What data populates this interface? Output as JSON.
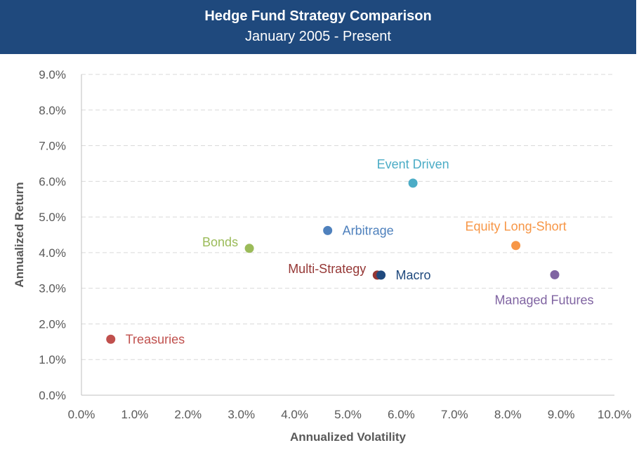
{
  "header": {
    "background": "#1f497d",
    "title": "Hedge Fund Strategy Comparison",
    "subtitle": "January 2005 - Present"
  },
  "chart_data": {
    "type": "scatter",
    "title": "Hedge Fund Strategy Comparison",
    "subtitle": "January 2005 - Present",
    "xlabel": "Annualized Volatility",
    "ylabel": "Annualized Return",
    "xlim": [
      0,
      10
    ],
    "ylim": [
      0,
      9
    ],
    "x_ticks": [
      "0.0%",
      "1.0%",
      "2.0%",
      "3.0%",
      "4.0%",
      "5.0%",
      "6.0%",
      "7.0%",
      "8.0%",
      "9.0%",
      "10.0%"
    ],
    "y_ticks": [
      "0.0%",
      "1.0%",
      "2.0%",
      "3.0%",
      "4.0%",
      "5.0%",
      "6.0%",
      "7.0%",
      "8.0%",
      "9.0%"
    ],
    "grid": "horizontal dashed",
    "legend": "none",
    "points": [
      {
        "label": "Treasuries",
        "x": 0.55,
        "y": 1.57,
        "color": "#c0504d",
        "label_pos": "right"
      },
      {
        "label": "Bonds",
        "x": 3.15,
        "y": 4.12,
        "color": "#9bbb59",
        "label_pos": "left"
      },
      {
        "label": "Arbitrage",
        "x": 4.62,
        "y": 4.62,
        "color": "#4f81bd",
        "label_pos": "right"
      },
      {
        "label": "Event Driven",
        "x": 6.22,
        "y": 5.95,
        "color": "#4bacc6",
        "label_pos": "top"
      },
      {
        "label": "Equity Long-Short",
        "x": 8.15,
        "y": 4.2,
        "color": "#f79646",
        "label_pos": "top"
      },
      {
        "label": "Multi-Strategy",
        "x": 5.55,
        "y": 3.37,
        "color": "#953735",
        "label_pos": "left"
      },
      {
        "label": "Macro",
        "x": 5.62,
        "y": 3.37,
        "color": "#1f497d",
        "label_pos": "right"
      },
      {
        "label": "Managed Futures",
        "x": 8.88,
        "y": 3.38,
        "color": "#8064a2",
        "label_pos": "bottom"
      }
    ]
  }
}
